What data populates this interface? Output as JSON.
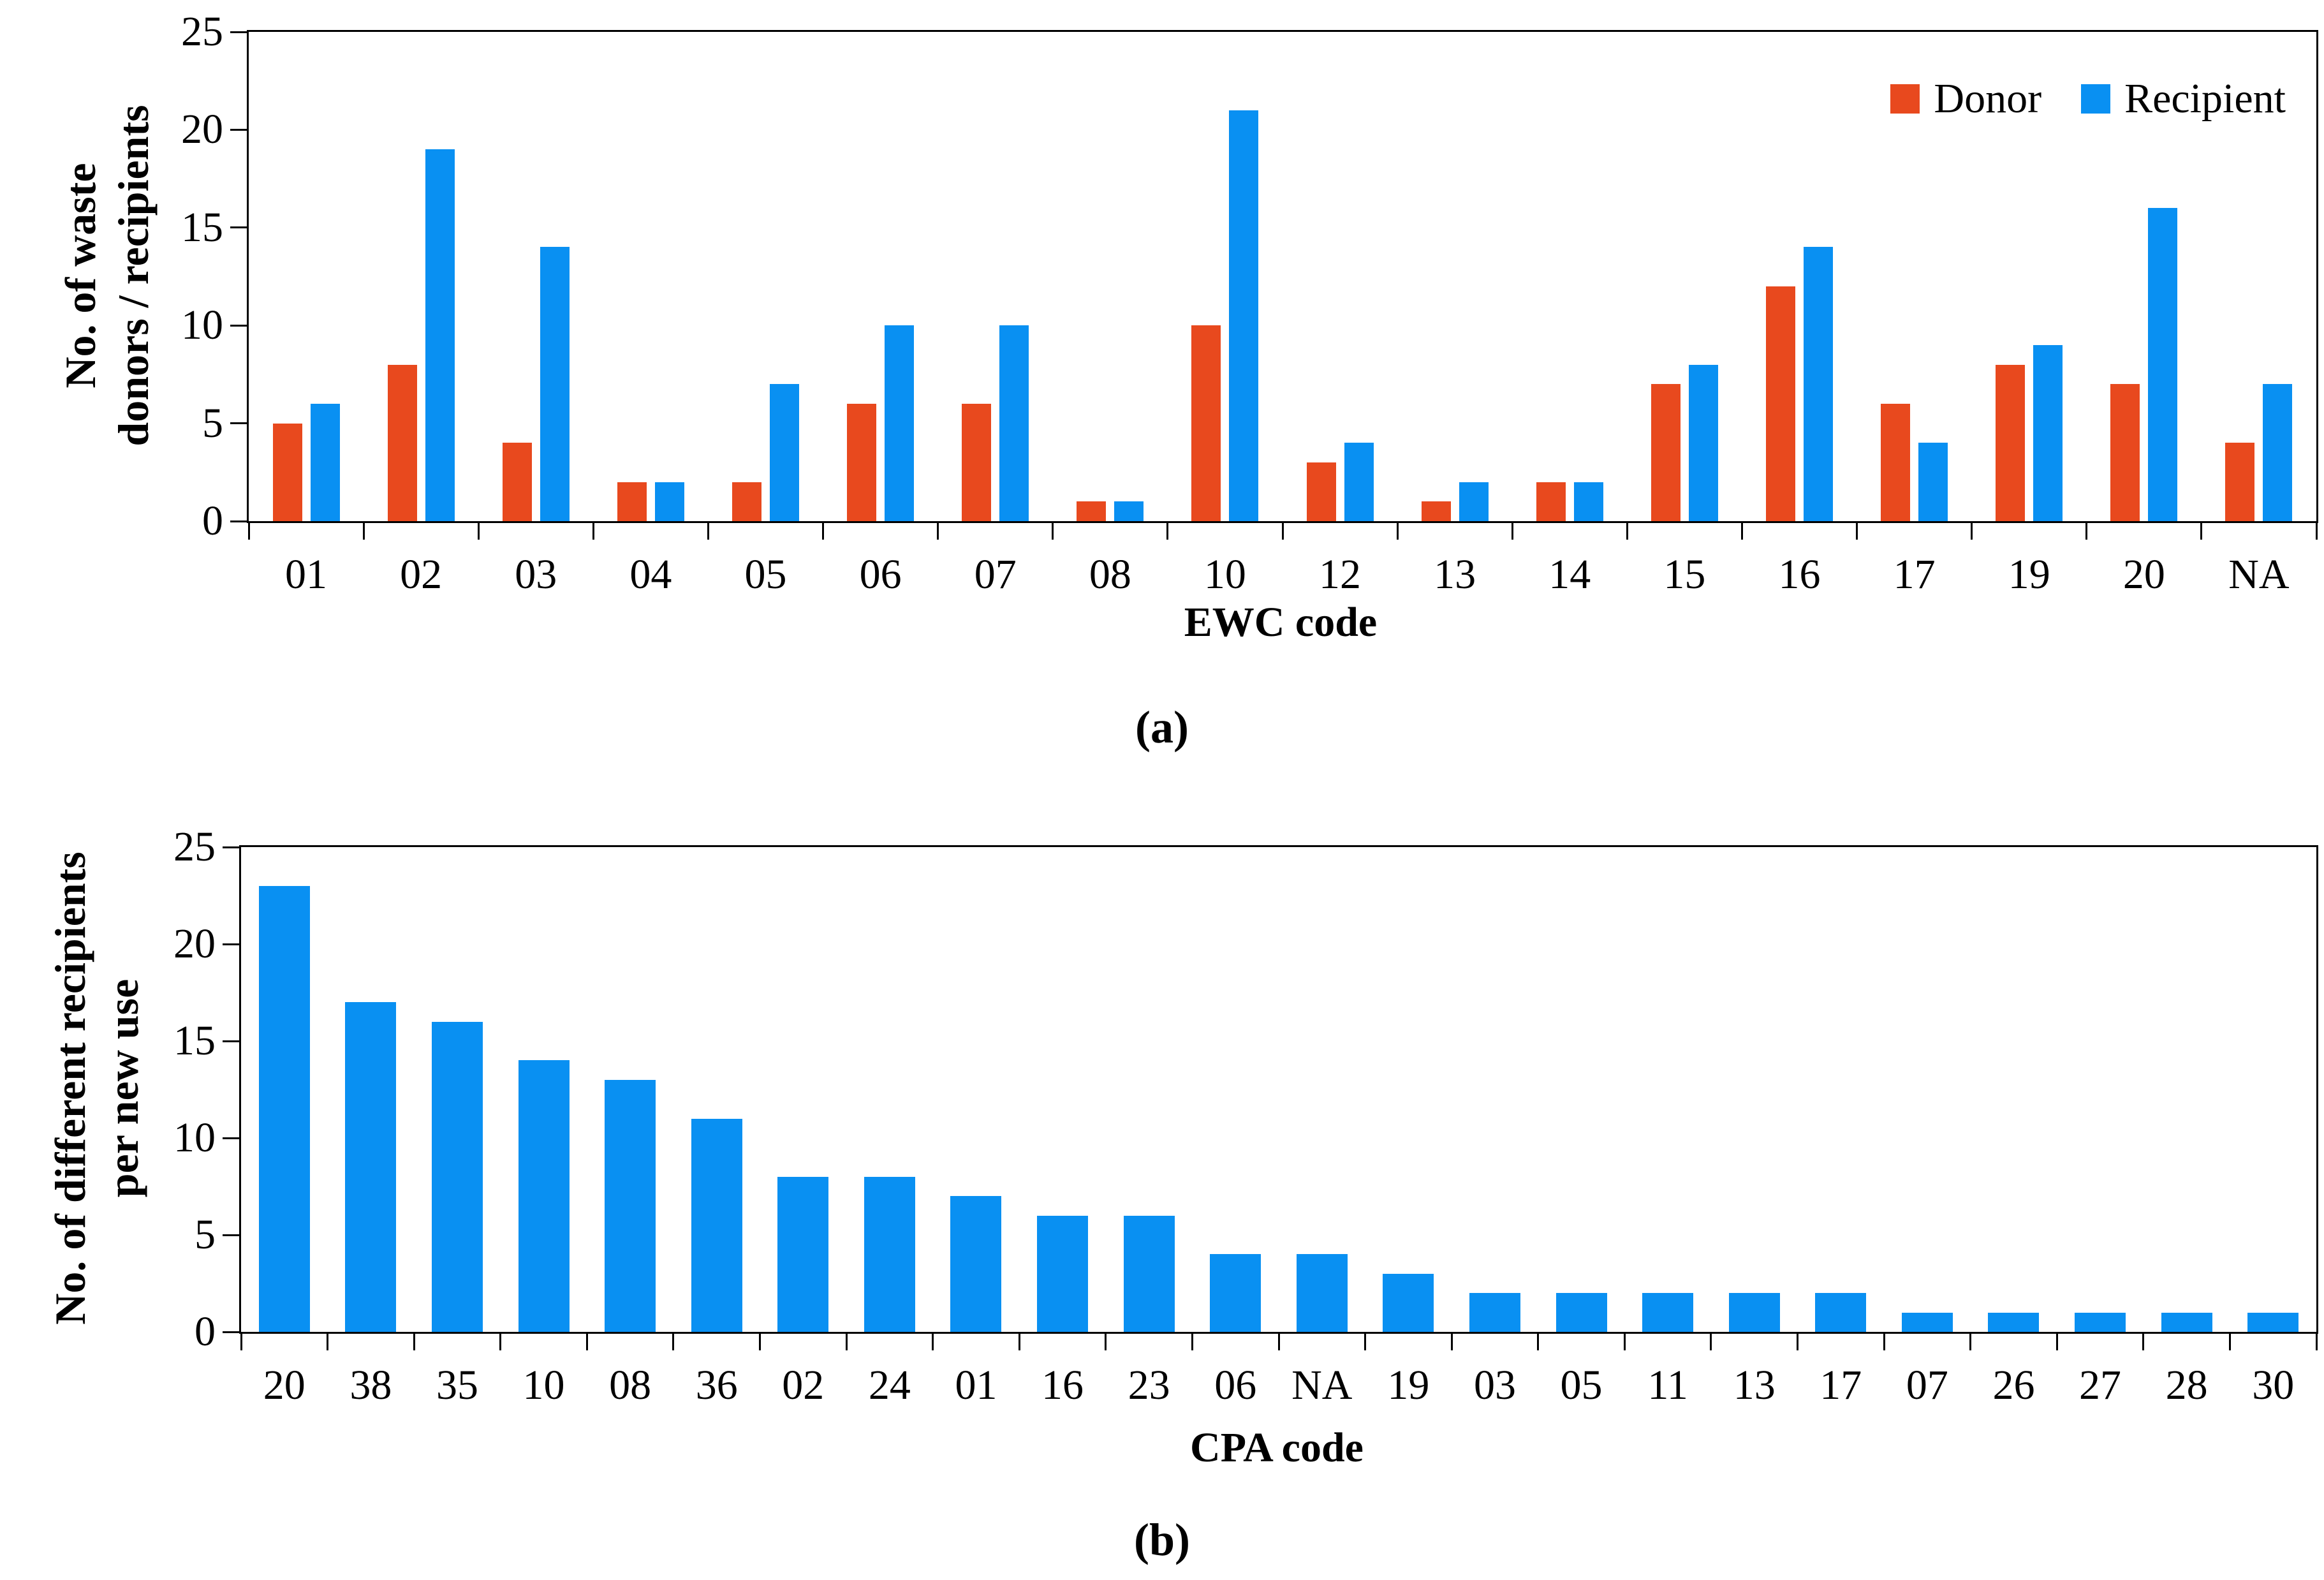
{
  "figure": {
    "panel_a_label": "(a)",
    "panel_b_label": "(b)"
  },
  "colors": {
    "donor": "#E8491E",
    "recipient": "#0990F2",
    "axis": "#000000"
  },
  "legend": {
    "donor_label": "Donor",
    "recipient_label": "Recipient",
    "position": "top-right-inside-panel-a"
  },
  "chart_data": [
    {
      "type": "bar",
      "panel": "a",
      "title": "",
      "xlabel": "EWC code",
      "ylabel": "No. of waste donors / recipients",
      "ylabel_lines": [
        "No. of waste",
        "donors / recipients"
      ],
      "ylim": [
        0,
        25
      ],
      "yticks": [
        0,
        5,
        10,
        15,
        20,
        25
      ],
      "grid": false,
      "legend_position": "top-right",
      "categories": [
        "01",
        "02",
        "03",
        "04",
        "05",
        "06",
        "07",
        "08",
        "10",
        "12",
        "13",
        "14",
        "15",
        "16",
        "17",
        "19",
        "20",
        "NA"
      ],
      "series": [
        {
          "name": "Donor",
          "color": "#E8491E",
          "values": [
            5,
            8,
            4,
            2,
            2,
            6,
            6,
            1,
            10,
            3,
            1,
            2,
            7,
            12,
            6,
            8,
            7,
            4
          ]
        },
        {
          "name": "Recipient",
          "color": "#0990F2",
          "values": [
            6,
            19,
            14,
            2,
            7,
            10,
            10,
            1,
            21,
            4,
            2,
            2,
            8,
            14,
            4,
            9,
            16,
            7
          ]
        }
      ]
    },
    {
      "type": "bar",
      "panel": "b",
      "title": "",
      "xlabel": "CPA code",
      "ylabel": "No. of different recipients per new use",
      "ylabel_lines": [
        "No. of different recipients",
        "per new use"
      ],
      "ylim": [
        0,
        25
      ],
      "yticks": [
        0,
        5,
        10,
        15,
        20,
        25
      ],
      "grid": false,
      "legend_position": "none",
      "categories": [
        "20",
        "38",
        "35",
        "10",
        "08",
        "36",
        "02",
        "24",
        "01",
        "16",
        "23",
        "06",
        "NA",
        "19",
        "03",
        "05",
        "11",
        "13",
        "17",
        "07",
        "26",
        "27",
        "28",
        "30"
      ],
      "series": [
        {
          "name": "Recipient",
          "color": "#0990F2",
          "values": [
            23,
            17,
            16,
            14,
            13,
            11,
            8,
            8,
            7,
            6,
            6,
            4,
            4,
            3,
            2,
            2,
            2,
            2,
            2,
            1,
            1,
            1,
            1,
            1
          ]
        }
      ]
    }
  ]
}
